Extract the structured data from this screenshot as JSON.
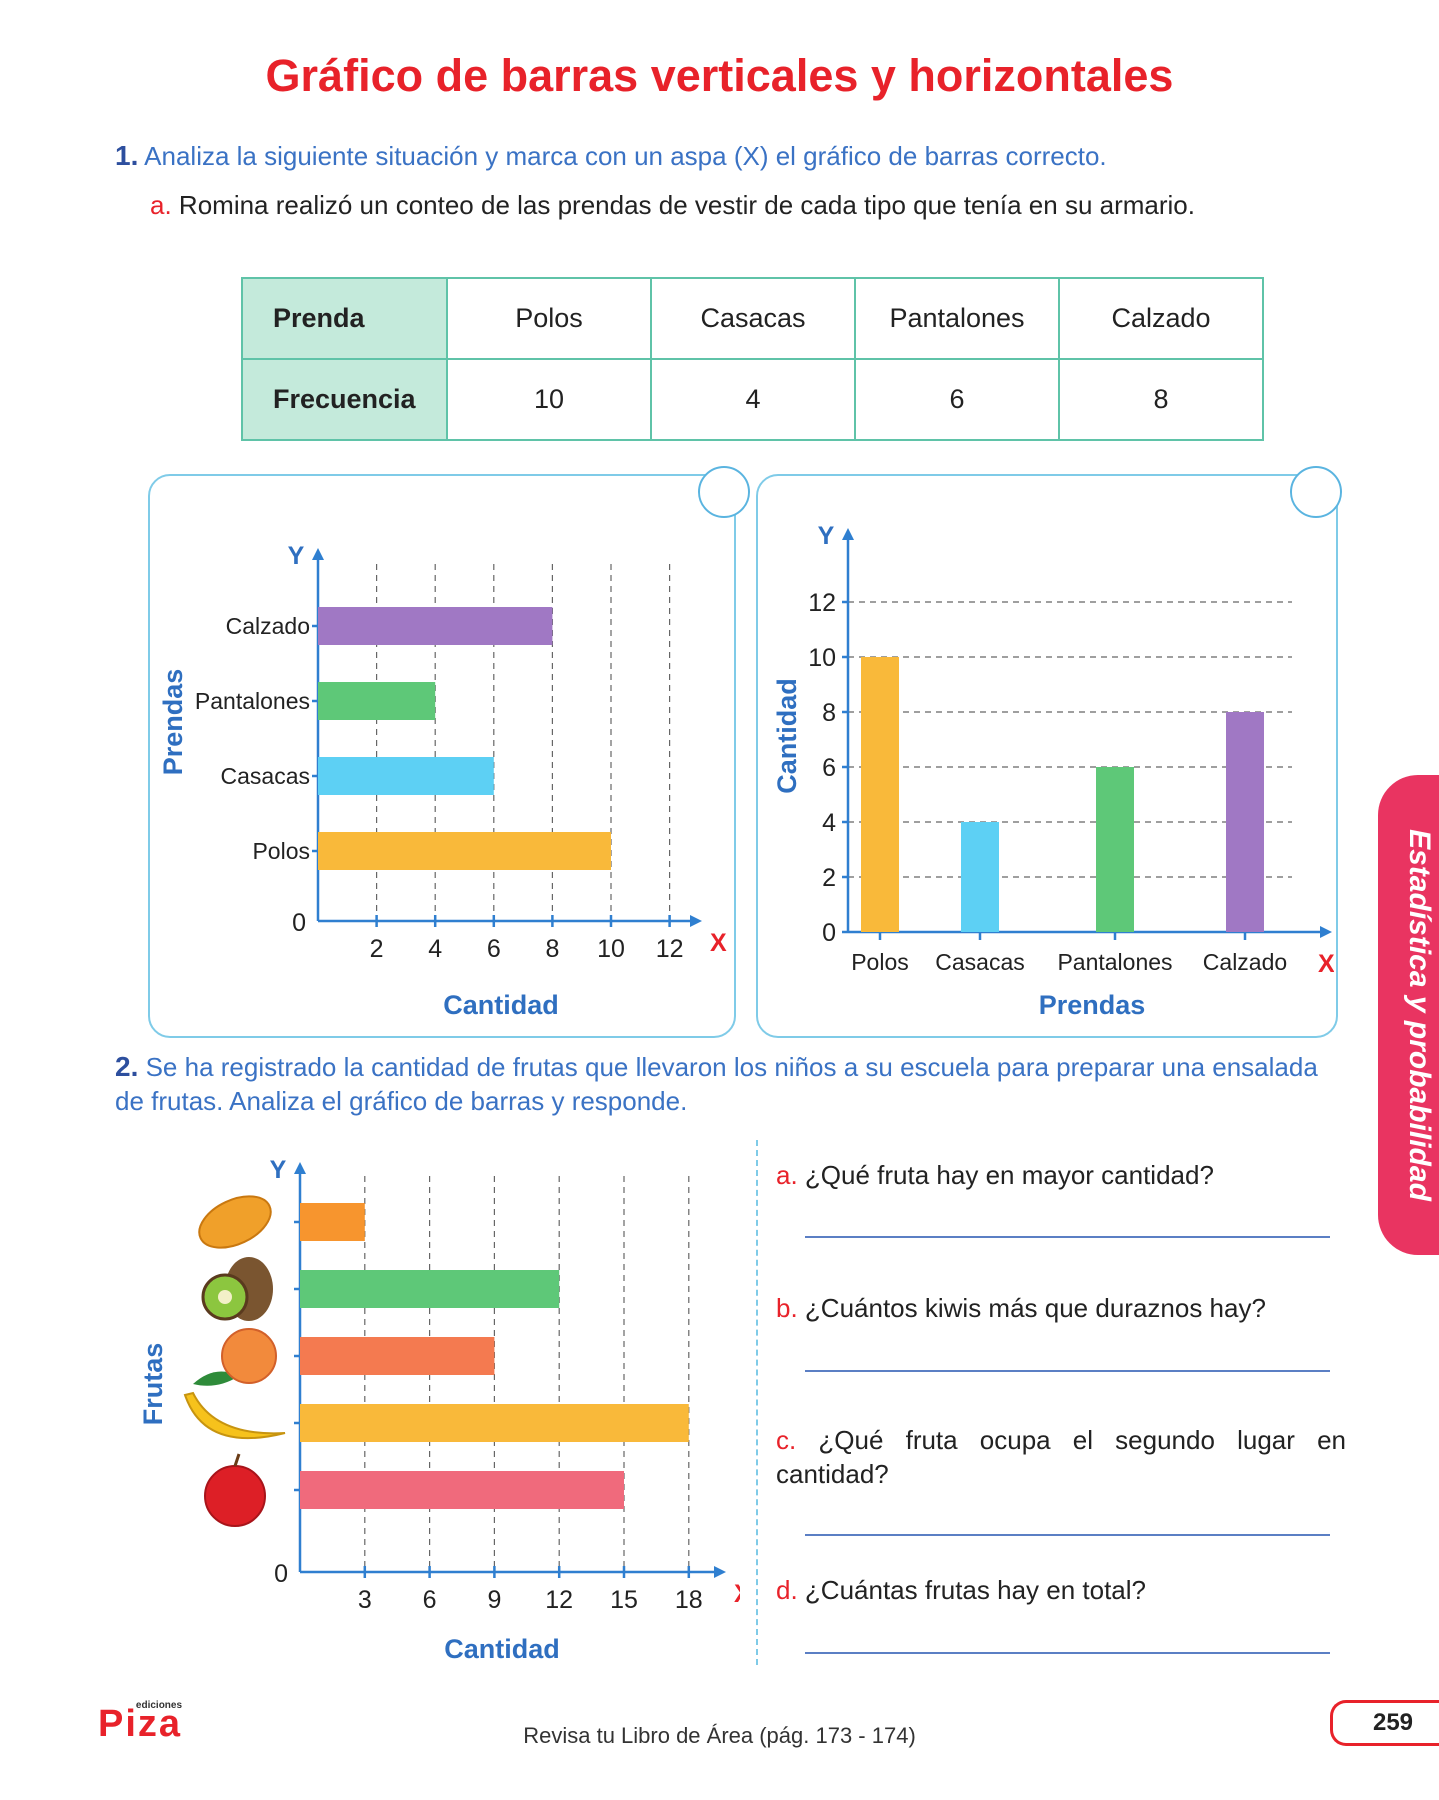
{
  "title": "Gráfico de barras verticales y horizontales",
  "q1": {
    "number": "1.",
    "text": "Analiza la siguiente situación y marca con un aspa (X) el gráfico de barras correcto.",
    "a_letter": "a.",
    "a_text": "Romina realizó un conteo de las prendas de vestir de cada tipo que tenía en su armario.",
    "table": {
      "row1_header": "Prenda",
      "row2_header": "Frecuencia",
      "items": [
        "Polos",
        "Casacas",
        "Pantalones",
        "Calzado"
      ],
      "freq": [
        "10",
        "4",
        "6",
        "8"
      ]
    }
  },
  "chart_data": [
    {
      "type": "bar",
      "orientation": "horizontal",
      "categories": [
        "Polos",
        "Casacas",
        "Pantalones",
        "Calzado"
      ],
      "values": [
        10,
        6,
        4,
        8
      ],
      "colors": [
        "#f9b93a",
        "#5dd0f4",
        "#5ec878",
        "#a078c4"
      ],
      "xlabel": "Cantidad",
      "ylabel": "Prendas",
      "x_axis_letter": "X",
      "y_axis_letter": "Y",
      "origin": "0",
      "xticks": [
        "2",
        "4",
        "6",
        "8",
        "10",
        "12"
      ],
      "xlim": [
        0,
        12
      ],
      "grid": "vertical dashed"
    },
    {
      "type": "bar",
      "orientation": "vertical",
      "categories": [
        "Polos",
        "Casacas",
        "Pantalones",
        "Calzado"
      ],
      "values": [
        10,
        4,
        6,
        8
      ],
      "colors": [
        "#f9b93a",
        "#5dd0f4",
        "#5ec878",
        "#a078c4"
      ],
      "xlabel": "Prendas",
      "ylabel": "Cantidad",
      "x_axis_letter": "X",
      "y_axis_letter": "Y",
      "yticks": [
        "0",
        "2",
        "4",
        "6",
        "8",
        "10",
        "12"
      ],
      "ylim": [
        0,
        12
      ],
      "grid": "horizontal dashed"
    },
    {
      "type": "bar",
      "orientation": "horizontal",
      "categories": [
        "papaya",
        "kiwi",
        "durazno",
        "plátano",
        "manzana"
      ],
      "category_icons": [
        "papaya-icon",
        "kiwi-icon",
        "peach-icon",
        "banana-icon",
        "apple-icon"
      ],
      "values": [
        3,
        12,
        9,
        18,
        15
      ],
      "colors": [
        "#f7952e",
        "#5ec878",
        "#f47a50",
        "#f9b93a",
        "#f06a7c"
      ],
      "xlabel": "Cantidad",
      "ylabel": "Frutas",
      "x_axis_letter": "X",
      "y_axis_letter": "Y",
      "origin": "0",
      "xticks": [
        "3",
        "6",
        "9",
        "12",
        "15",
        "18"
      ],
      "xlim": [
        0,
        18
      ],
      "grid": "vertical dashed"
    }
  ],
  "q2": {
    "number": "2.",
    "text": "Se ha registrado la cantidad de frutas que llevaron los niños a su escuela para preparar una ensalada de frutas. Analiza el gráfico de barras y responde.",
    "questions": [
      {
        "letter": "a.",
        "text": "¿Qué fruta hay en mayor cantidad?"
      },
      {
        "letter": "b.",
        "text": "¿Cuántos kiwis más que duraznos hay?"
      },
      {
        "letter": "c.",
        "text": "¿Qué fruta ocupa el segundo lugar en cantidad?"
      },
      {
        "letter": "d.",
        "text": "¿Cuántas frutas hay en total?"
      }
    ]
  },
  "side_tab": "Estadística y probabilidad",
  "footer": "Revisa tu Libro de Área (pág. 173 - 174)",
  "page_number": "259",
  "logo": {
    "small": "ediciones",
    "main": "Piza"
  }
}
